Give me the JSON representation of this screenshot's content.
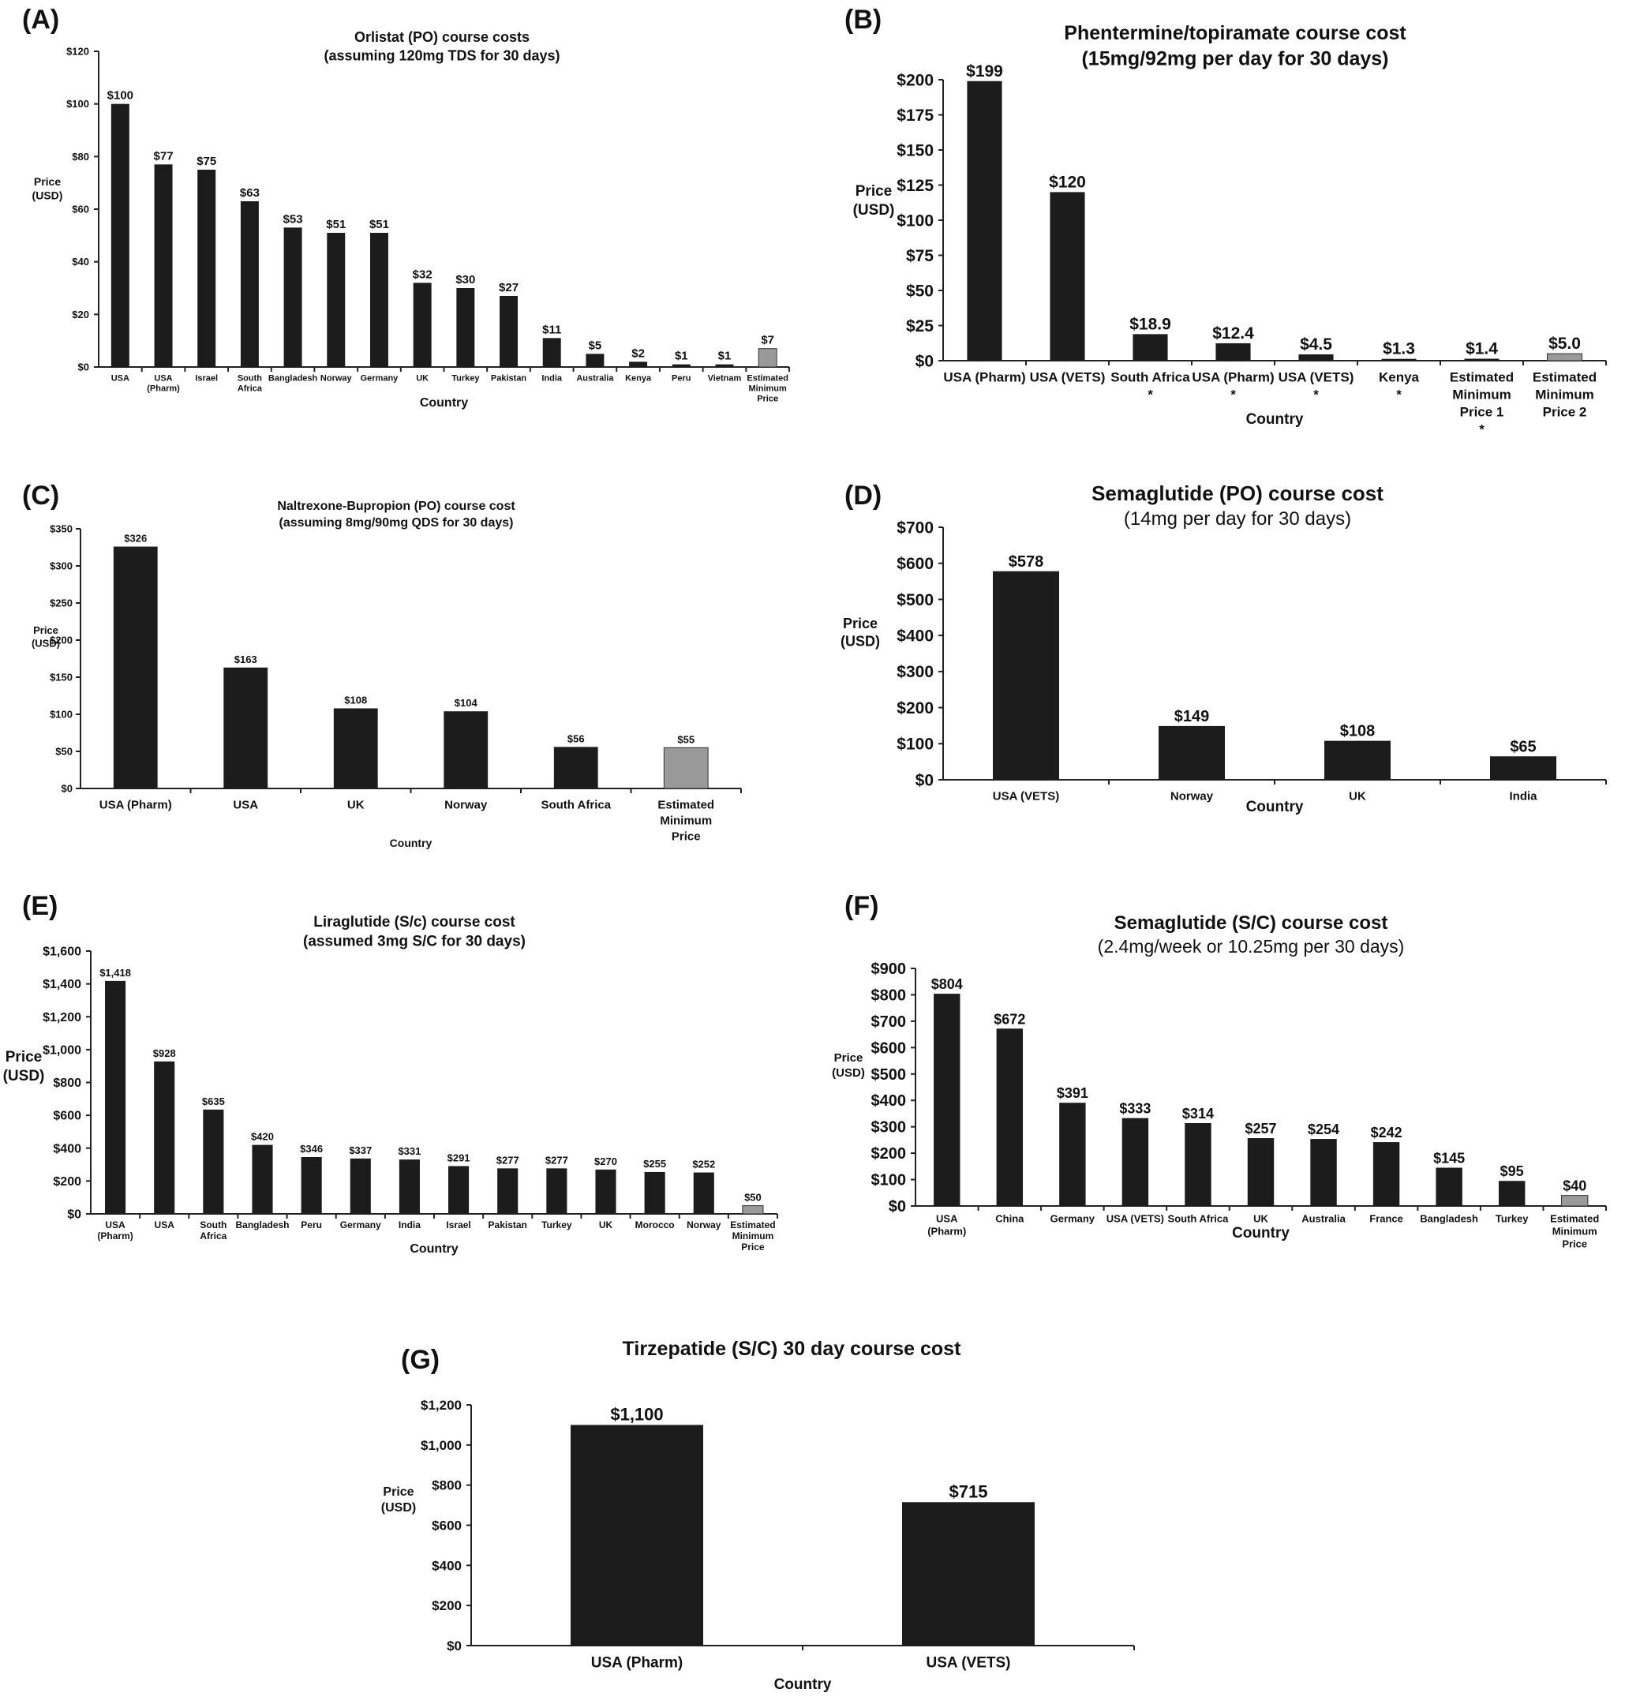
{
  "chart_data": [
    {
      "id": "A",
      "panel_label": "(A)",
      "type": "bar",
      "title": "Orlistat (PO) course costs",
      "subtitle": "(assuming 120mg TDS for 30 days)",
      "ylabel": "Price\n(USD)",
      "xlabel": "Country",
      "ylim": [
        0,
        120
      ],
      "yticks": [
        0,
        20,
        40,
        60,
        80,
        100,
        120
      ],
      "ytick_labels": [
        "$0",
        "$20",
        "$40",
        "$60",
        "$80",
        "$100",
        "$120"
      ],
      "categories": [
        "USA",
        "USA\n(Pharm)",
        "Israel",
        "South\nAfrica",
        "Bangladesh",
        "Norway",
        "Germany",
        "UK",
        "Turkey",
        "Pakistan",
        "India",
        "Australia",
        "Kenya",
        "Peru",
        "Vietnam",
        "Estimated\nMinimum\nPrice"
      ],
      "values": [
        100,
        77,
        75,
        63,
        53,
        51,
        51,
        32,
        30,
        27,
        11,
        5,
        2,
        1,
        1,
        7
      ],
      "value_labels": [
        "$100",
        "$77",
        "$75",
        "$63",
        "$53",
        "$51",
        "$51",
        "$32",
        "$30",
        "$27",
        "$11",
        "$5",
        "$2",
        "$1",
        "$1",
        "$7"
      ],
      "highlight": [
        15
      ]
    },
    {
      "id": "B",
      "panel_label": "(B)",
      "type": "bar",
      "title": "Phentermine/topiramate course cost",
      "subtitle": "(15mg/92mg per day for 30 days)",
      "ylabel": "Price\n(USD)",
      "xlabel": "Country",
      "ylim": [
        0,
        200
      ],
      "yticks": [
        0,
        25,
        50,
        75,
        100,
        125,
        150,
        175,
        200
      ],
      "ytick_labels": [
        "$0",
        "$25",
        "$50",
        "$75",
        "$100",
        "$125",
        "$150",
        "$175",
        "$200"
      ],
      "categories": [
        "USA (Pharm)",
        "USA (VETS)",
        "South Africa\n*",
        "USA (Pharm)\n*",
        "USA (VETS)\n*",
        "Kenya\n*",
        "Estimated\nMinimum\nPrice 1\n*",
        "Estimated\nMinimum\nPrice 2"
      ],
      "values": [
        199,
        120,
        18.9,
        12.4,
        4.5,
        1.3,
        1.4,
        5.0
      ],
      "value_labels": [
        "$199",
        "$120",
        "$18.9",
        "$12.4",
        "$4.5",
        "$1.3",
        "$1.4",
        "$5.0"
      ],
      "highlight": [
        7
      ]
    },
    {
      "id": "C",
      "panel_label": "(C)",
      "type": "bar",
      "title": "Naltrexone-Bupropion (PO) course cost",
      "subtitle": "(assuming 8mg/90mg QDS for 30 days)",
      "ylabel": "Price\n(USD)",
      "xlabel": "Country",
      "ylim": [
        0,
        350
      ],
      "yticks": [
        0,
        50,
        100,
        150,
        200,
        250,
        300,
        350
      ],
      "ytick_labels": [
        "$0",
        "$50",
        "$100",
        "$150",
        "$200",
        "$250",
        "$300",
        "$350"
      ],
      "categories": [
        "USA (Pharm)",
        "USA",
        "UK",
        "Norway",
        "South Africa",
        "Estimated\nMinimum\nPrice"
      ],
      "values": [
        326,
        163,
        108,
        104,
        56,
        55
      ],
      "value_labels": [
        "$326",
        "$163",
        "$108",
        "$104",
        "$56",
        "$55"
      ],
      "highlight": [
        5
      ]
    },
    {
      "id": "D",
      "panel_label": "(D)",
      "type": "bar",
      "title": "Semaglutide (PO) course cost",
      "subtitle": "(14mg per day for 30 days)",
      "ylabel": "Price\n(USD)",
      "xlabel": "Country",
      "ylim": [
        0,
        700
      ],
      "yticks": [
        0,
        100,
        200,
        300,
        400,
        500,
        600,
        700
      ],
      "ytick_labels": [
        "$0",
        "$100",
        "$200",
        "$300",
        "$400",
        "$500",
        "$600",
        "$700"
      ],
      "categories": [
        "USA (VETS)",
        "Norway",
        "UK",
        "India"
      ],
      "values": [
        578,
        149,
        108,
        65
      ],
      "value_labels": [
        "$578",
        "$149",
        "$108",
        "$65"
      ],
      "highlight": []
    },
    {
      "id": "E",
      "panel_label": "(E)",
      "type": "bar",
      "title": "Liraglutide (S/c) course cost",
      "subtitle": "(assumed 3mg S/C for 30 days)",
      "ylabel": "Price\n(USD)",
      "xlabel": "Country",
      "ylim": [
        0,
        1600
      ],
      "yticks": [
        0,
        200,
        400,
        600,
        800,
        1000,
        1200,
        1400,
        1600
      ],
      "ytick_labels": [
        "$0",
        "$200",
        "$400",
        "$600",
        "$800",
        "$1,000",
        "$1,200",
        "$1,400",
        "$1,600"
      ],
      "categories": [
        "USA\n(Pharm)",
        "USA",
        "South\nAfrica",
        "Bangladesh",
        "Peru",
        "Germany",
        "India",
        "Israel",
        "Pakistan",
        "Turkey",
        "UK",
        "Morocco",
        "Norway",
        "Estimated\nMinimum\nPrice"
      ],
      "values": [
        1418,
        928,
        635,
        420,
        346,
        337,
        331,
        291,
        277,
        277,
        270,
        255,
        252,
        50
      ],
      "value_labels": [
        "$1,418",
        "$928",
        "$635",
        "$420",
        "$346",
        "$337",
        "$331",
        "$291",
        "$277",
        "$277",
        "$270",
        "$255",
        "$252",
        "$50"
      ],
      "highlight": [
        13
      ]
    },
    {
      "id": "F",
      "panel_label": "(F)",
      "type": "bar",
      "title": "Semaglutide (S/C) course cost",
      "subtitle": "(2.4mg/week or 10.25mg per 30 days)",
      "ylabel": "Price\n(USD)",
      "xlabel": "Country",
      "ylim": [
        0,
        900
      ],
      "yticks": [
        0,
        100,
        200,
        300,
        400,
        500,
        600,
        700,
        800,
        900
      ],
      "ytick_labels": [
        "$0",
        "$100",
        "$200",
        "$300",
        "$400",
        "$500",
        "$600",
        "$700",
        "$800",
        "$900"
      ],
      "categories": [
        "USA\n(Pharm)",
        "China",
        "Germany",
        "USA (VETS)",
        "South Africa",
        "UK",
        "Australia",
        "France",
        "Bangladesh",
        "Turkey",
        "Estimated\nMinimum\nPrice"
      ],
      "values": [
        804,
        672,
        391,
        333,
        314,
        257,
        254,
        242,
        145,
        95,
        40
      ],
      "value_labels": [
        "$804",
        "$672",
        "$391",
        "$333",
        "$314",
        "$257",
        "$254",
        "$242",
        "$145",
        "$95",
        "$40"
      ],
      "highlight": [
        10
      ]
    },
    {
      "id": "G",
      "panel_label": "(G)",
      "type": "bar",
      "title": "Tirzepatide (S/C) 30 day course cost",
      "subtitle": "",
      "ylabel": "Price\n(USD)",
      "xlabel": "Country",
      "ylim": [
        0,
        1200
      ],
      "yticks": [
        0,
        200,
        400,
        600,
        800,
        1000,
        1200
      ],
      "ytick_labels": [
        "$0",
        "$200",
        "$400",
        "$600",
        "$800",
        "$1,000",
        "$1,200"
      ],
      "categories": [
        "USA (Pharm)",
        "USA (VETS)"
      ],
      "values": [
        1100,
        715
      ],
      "value_labels": [
        "$1,100",
        "$715"
      ],
      "highlight": []
    }
  ]
}
